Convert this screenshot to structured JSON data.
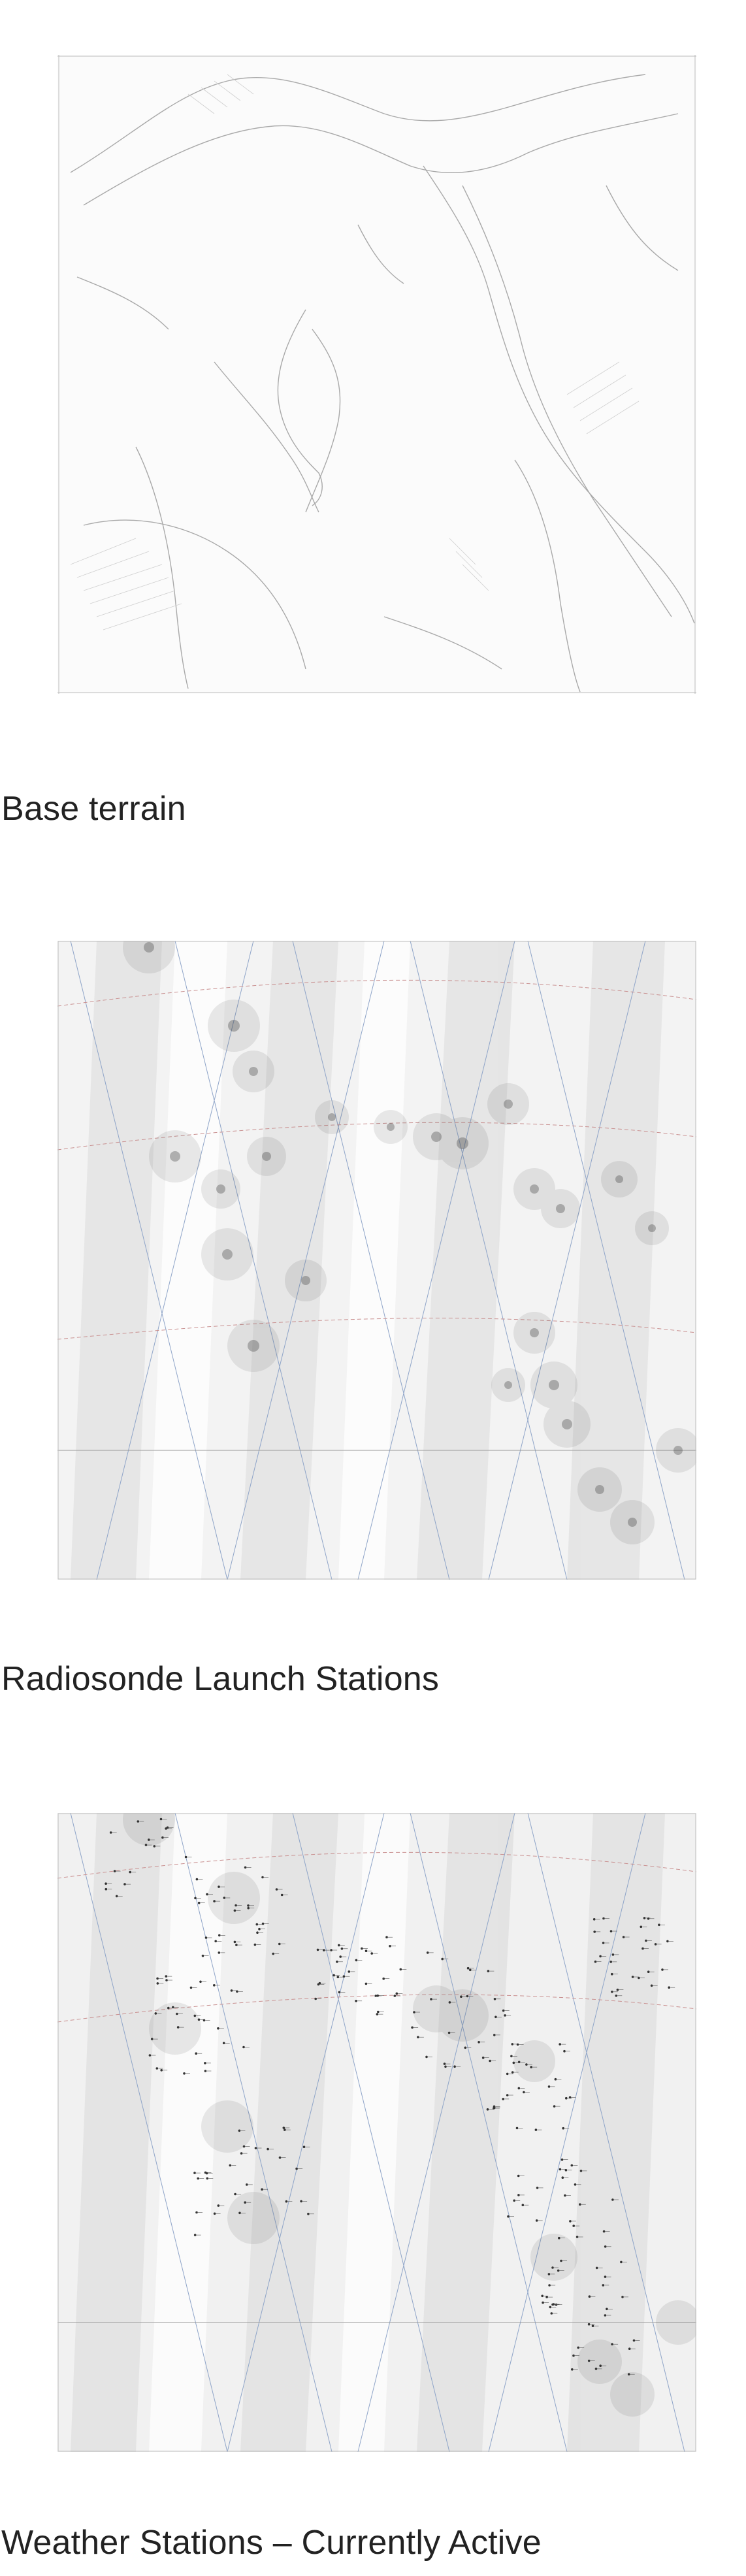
{
  "panels": [
    {
      "caption": "Base terrain",
      "layer": "terrain-relief"
    },
    {
      "caption": "Radiosonde Launch Stations",
      "layer": "radiosonde-stations"
    },
    {
      "caption": "Weather Stations – Currently Active",
      "layer": "weather-stations"
    }
  ],
  "colors": {
    "background": "#ffffff",
    "map_base": "#f4f4f4",
    "terrain_line": "#9a9a9a",
    "station_halo": "#5a5a5a",
    "track_blue": "#6e8fbf",
    "track_red": "#c07070",
    "text": "#222222"
  }
}
